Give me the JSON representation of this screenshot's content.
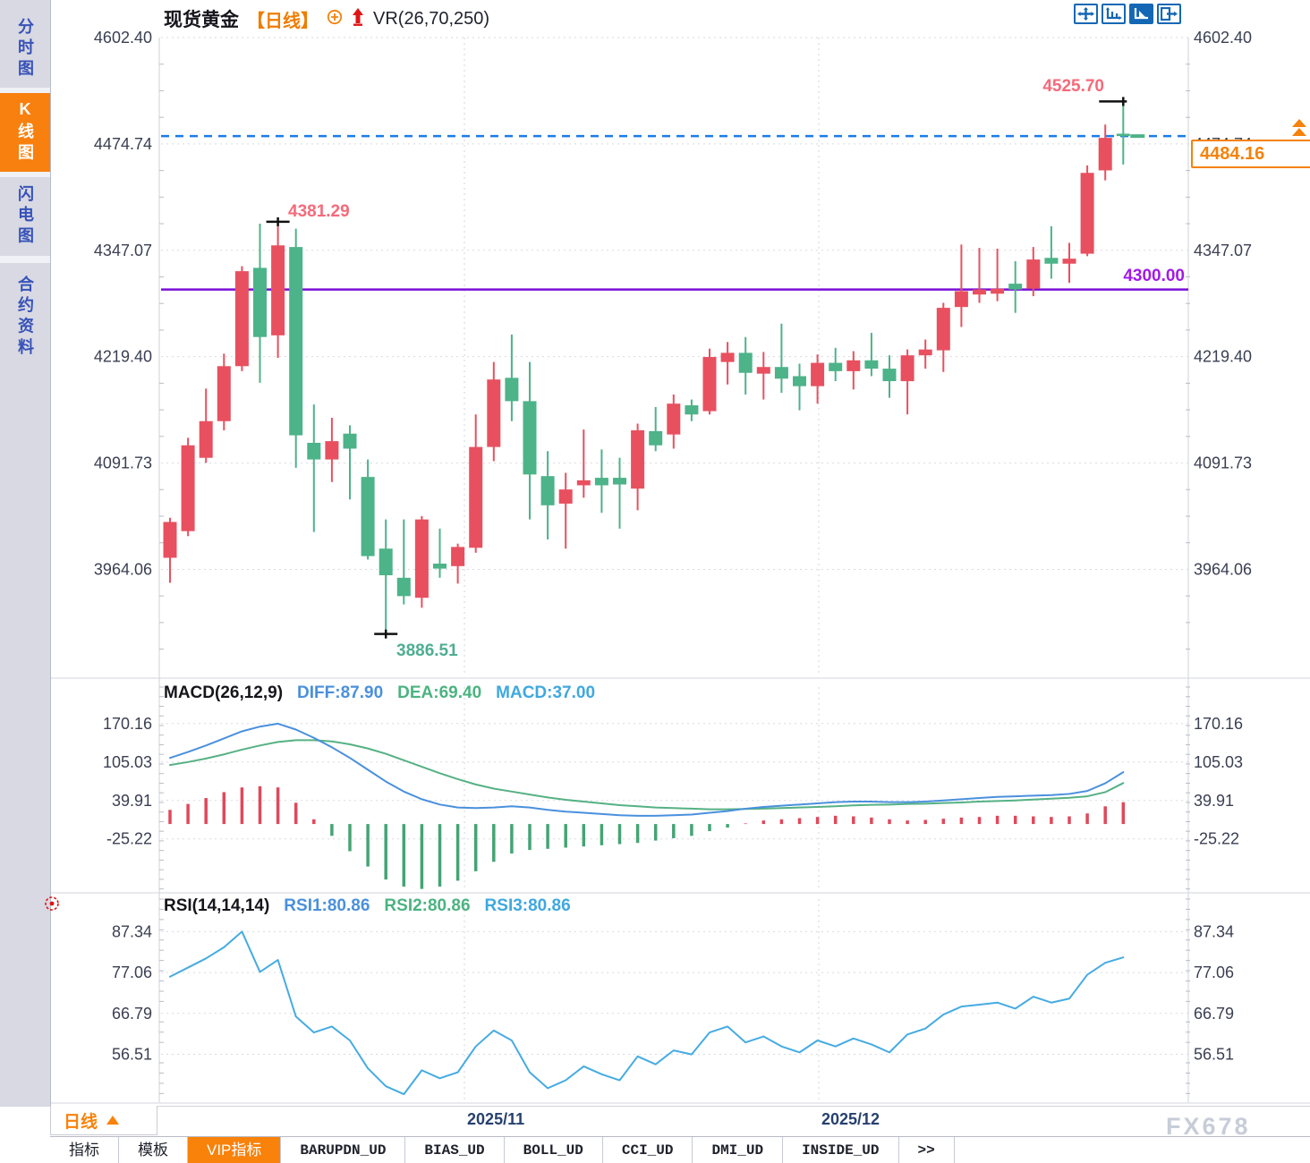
{
  "header": {
    "symbol": "现货黄金",
    "period_tag": "【日线】",
    "indicator": "VR(26,70,250)"
  },
  "toolbar": {
    "buttons": [
      "move-icon",
      "fit-axis-icon",
      "play-axis-icon",
      "exit-right-icon"
    ],
    "active_index": 2
  },
  "sidebar": {
    "items": [
      {
        "label": "分时图",
        "active": false
      },
      {
        "label": "K线图",
        "active": true
      },
      {
        "label": "闪电图",
        "active": false
      },
      {
        "label": "合约资料",
        "active": false
      }
    ]
  },
  "annotations": {
    "last_high": "4525.70",
    "swing_high": "4381.29",
    "swing_low": "3886.51",
    "level_label": "4300.00",
    "current_price": "4484.16"
  },
  "macd_header": {
    "name": "MACD(26,12,9)",
    "diff": "DIFF:87.90",
    "dea": "DEA:69.40",
    "macd": "MACD:37.00"
  },
  "rsi_header": {
    "name": "RSI(14,14,14)",
    "rsi1": "RSI1:80.86",
    "rsi2": "RSI2:80.86",
    "rsi3": "RSI3:80.86"
  },
  "x_axis": {
    "period_label": "日线",
    "labels": [
      "2025/11",
      "2025/12"
    ]
  },
  "bottom_tabs": {
    "items": [
      "指标",
      "模板",
      "VIP指标",
      "BARUPDN_UD",
      "BIAS_UD",
      "BOLL_UD",
      "CCI_UD",
      "DMI_UD",
      "INSIDE_UD",
      ">>"
    ],
    "active": "VIP指标"
  },
  "watermark": "FX678",
  "colors": {
    "up": "#e8505f",
    "down": "#4db389",
    "accent_orange": "#f5820a",
    "level_line": "#7a0fd8",
    "current_line": "#1b7ce8",
    "diff_line": "#4a90dd",
    "dea_line": "#55b184",
    "rsi_line": "#46abe2",
    "grid": "#d9dae2",
    "axis_text": "#3a3f52"
  },
  "chart_data": {
    "type": "candlestick",
    "title": "现货黄金 日线",
    "price_panel": {
      "y_labels": [
        4602.4,
        4474.74,
        4347.07,
        4219.4,
        4091.73,
        3964.06
      ],
      "ylim": [
        3840,
        4602.4
      ],
      "level_line": 4300.0,
      "current_price": 4484.16,
      "swing_high": {
        "value": 4381.29,
        "index": 6
      },
      "swing_low": {
        "value": 3886.51,
        "index": 12
      },
      "last_high": {
        "value": 4525.7,
        "index": 53
      },
      "candles_ohlc": [
        [
          3978,
          4026,
          3948,
          4021
        ],
        [
          4010,
          4122,
          4004,
          4113
        ],
        [
          4098,
          4181,
          4092,
          4142
        ],
        [
          4142,
          4223,
          4131,
          4208
        ],
        [
          4208,
          4328,
          4202,
          4322
        ],
        [
          4326,
          4379,
          4188,
          4243
        ],
        [
          4245,
          4381.29,
          4218,
          4353
        ],
        [
          4351,
          4373,
          4086,
          4125
        ],
        [
          4116,
          4162,
          4009,
          4096
        ],
        [
          4096,
          4146,
          4069,
          4118
        ],
        [
          4127,
          4137,
          4048,
          4109
        ],
        [
          4075,
          4096,
          3976,
          3980
        ],
        [
          3989,
          4024,
          3886.51,
          3957
        ],
        [
          3954,
          4024,
          3922,
          3932
        ],
        [
          3930,
          4028,
          3918,
          4024
        ],
        [
          3971,
          4013,
          3954,
          3965
        ],
        [
          3968,
          3995,
          3947,
          3991
        ],
        [
          3990,
          4150,
          3984,
          4111
        ],
        [
          4111,
          4213,
          4094,
          4192
        ],
        [
          4194,
          4246,
          4142,
          4166
        ],
        [
          4166,
          4213,
          4024,
          4078
        ],
        [
          4076,
          4106,
          4000,
          4041
        ],
        [
          4043,
          4080,
          3989,
          4060
        ],
        [
          4065,
          4132,
          4050,
          4071
        ],
        [
          4074,
          4108,
          4032,
          4065
        ],
        [
          4074,
          4098,
          4013,
          4066
        ],
        [
          4061,
          4139,
          4035,
          4131
        ],
        [
          4130,
          4159,
          4106,
          4113
        ],
        [
          4126,
          4174,
          4109,
          4163
        ],
        [
          4161,
          4168,
          4142,
          4150
        ],
        [
          4154,
          4229,
          4150,
          4219
        ],
        [
          4213,
          4237,
          4186,
          4224
        ],
        [
          4224,
          4243,
          4174,
          4200
        ],
        [
          4199,
          4225,
          4168,
          4207
        ],
        [
          4207,
          4259,
          4176,
          4193
        ],
        [
          4196,
          4211,
          4155,
          4184
        ],
        [
          4184,
          4222,
          4163,
          4212
        ],
        [
          4212,
          4230,
          4190,
          4202
        ],
        [
          4202,
          4226,
          4180,
          4215
        ],
        [
          4215,
          4248,
          4196,
          4205
        ],
        [
          4205,
          4221,
          4170,
          4190
        ],
        [
          4190,
          4228,
          4150,
          4221
        ],
        [
          4221,
          4240,
          4205,
          4228
        ],
        [
          4227,
          4284,
          4201,
          4278
        ],
        [
          4279,
          4354,
          4255,
          4298
        ],
        [
          4294,
          4350,
          4284,
          4300
        ],
        [
          4295,
          4349,
          4286,
          4301
        ],
        [
          4307,
          4334,
          4272,
          4300
        ],
        [
          4301,
          4351,
          4292,
          4336
        ],
        [
          4338,
          4376,
          4313,
          4331
        ],
        [
          4331,
          4356,
          4308,
          4337
        ],
        [
          4343,
          4449,
          4340,
          4440
        ],
        [
          4443,
          4498,
          4431,
          4482
        ],
        [
          4487,
          4525.7,
          4450,
          4484.16
        ]
      ]
    },
    "macd_panel": {
      "y_labels": [
        170.16,
        105.03,
        39.91,
        -25.22
      ],
      "ylim": [
        -112,
        232
      ],
      "diff": [
        112,
        122,
        133,
        145,
        157,
        165,
        170,
        160,
        146,
        130,
        112,
        92,
        72,
        55,
        42,
        33,
        28,
        27,
        28,
        30,
        28,
        24,
        21,
        19,
        17,
        15,
        14,
        14,
        15,
        16,
        19,
        22,
        26,
        29,
        31,
        33,
        35,
        37,
        38,
        38,
        37,
        37,
        38,
        40,
        42,
        44,
        46,
        47,
        48,
        49,
        51,
        56,
        69,
        87.9
      ],
      "dea": [
        100,
        105,
        111,
        118,
        126,
        133,
        139,
        142,
        142,
        140,
        135,
        128,
        119,
        108,
        97,
        86,
        76,
        67,
        60,
        55,
        50,
        45,
        41,
        38,
        35,
        32,
        30,
        28,
        27,
        26,
        25,
        25,
        25.5,
        26,
        27,
        28,
        29,
        30,
        31.5,
        32.5,
        33,
        34,
        34.5,
        35.5,
        36.5,
        38,
        39,
        40,
        41.5,
        43,
        44.5,
        47,
        54,
        69.4
      ]
    },
    "rsi_panel": {
      "y_labels": [
        87.34,
        77.06,
        66.79,
        56.51
      ],
      "ylim": [
        44.5,
        95.5
      ],
      "rsi": [
        76.0,
        78.3,
        80.6,
        83.4,
        87.34,
        77.2,
        80.2,
        66.0,
        62.0,
        63.5,
        60.0,
        53.0,
        48.5,
        46.5,
        52.5,
        50.5,
        52.0,
        58.5,
        62.5,
        60.0,
        52.0,
        48.0,
        50.0,
        53.5,
        51.5,
        50.0,
        56.0,
        54.0,
        57.5,
        56.5,
        62.0,
        63.5,
        59.5,
        61.0,
        58.5,
        57.0,
        60.0,
        58.5,
        60.5,
        59.0,
        57.0,
        61.5,
        63.0,
        66.5,
        68.5,
        69.0,
        69.5,
        68.0,
        71.0,
        69.5,
        70.5,
        76.5,
        79.5,
        80.86
      ]
    },
    "x_axis": {
      "month_marks": [
        {
          "label": "2025/11",
          "index": 16.37
        },
        {
          "label": "2025/12",
          "index": 36.07
        }
      ]
    },
    "legend_position": "top-left",
    "grid": true
  }
}
